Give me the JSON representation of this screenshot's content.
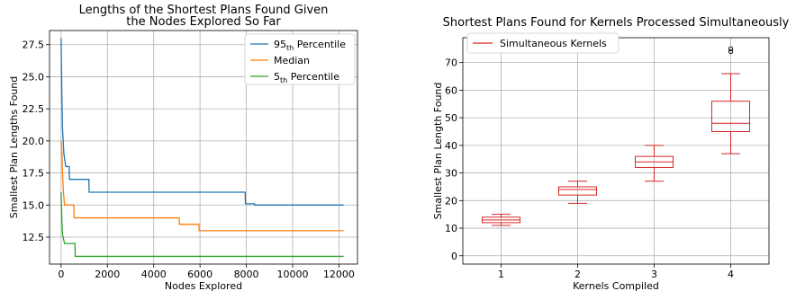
{
  "chart_data": [
    {
      "type": "line",
      "title_lines": [
        "Lengths of the Shortest Plans Found Given",
        "the Nodes Explored So Far"
      ],
      "xlabel": "Nodes Explored",
      "ylabel": "Smallest Plan Lengths Found",
      "xlim": [
        -500,
        12800
      ],
      "ylim": [
        10.4,
        28.6
      ],
      "xticks": [
        0,
        2000,
        4000,
        6000,
        8000,
        10000,
        12000
      ],
      "yticks": [
        12.5,
        15.0,
        17.5,
        20.0,
        22.5,
        25.0,
        27.5
      ],
      "grid": true,
      "legend_position": "top-right",
      "series": [
        {
          "name": "95th Percentile",
          "legend_base": "95",
          "legend_sub": "th",
          "legend_rest": " Percentile",
          "color": "#1f77b4",
          "points": [
            [
              0,
              28
            ],
            [
              30,
              24
            ],
            [
              60,
              21
            ],
            [
              120,
              19
            ],
            [
              200,
              18
            ],
            [
              350,
              18
            ],
            [
              360,
              17
            ],
            [
              1200,
              17
            ],
            [
              1210,
              16
            ],
            [
              7950,
              16
            ],
            [
              7960,
              15.1
            ],
            [
              8350,
              15.1
            ],
            [
              8360,
              15
            ],
            [
              12200,
              15
            ]
          ]
        },
        {
          "name": "Median",
          "legend_base": "Median",
          "legend_sub": "",
          "legend_rest": "",
          "color": "#ff7f0e",
          "points": [
            [
              0,
              20
            ],
            [
              40,
              19
            ],
            [
              60,
              17.5
            ],
            [
              100,
              16
            ],
            [
              150,
              15
            ],
            [
              550,
              15
            ],
            [
              560,
              14
            ],
            [
              5100,
              14
            ],
            [
              5110,
              13.5
            ],
            [
              5950,
              13.5
            ],
            [
              5960,
              13
            ],
            [
              12200,
              13
            ]
          ]
        },
        {
          "name": "5th Percentile",
          "legend_base": "5",
          "legend_sub": "th",
          "legend_rest": " Percentile",
          "color": "#2ca02c",
          "points": [
            [
              0,
              16
            ],
            [
              30,
              14
            ],
            [
              60,
              12.7
            ],
            [
              150,
              12
            ],
            [
              600,
              12
            ],
            [
              610,
              11
            ],
            [
              12200,
              11
            ]
          ]
        }
      ]
    },
    {
      "type": "box",
      "title": "Shortest Plans Found for Kernels Processed Simultaneously",
      "xlabel": "Kernels Compiled",
      "ylabel": "Smallest Plan Length Found",
      "xlim": [
        0.5,
        4.5
      ],
      "ylim": [
        -3,
        79
      ],
      "xticks": [
        1,
        2,
        3,
        4
      ],
      "yticks": [
        0,
        10,
        20,
        30,
        40,
        50,
        60,
        70
      ],
      "grid": true,
      "legend_position": "top-left",
      "color": "#d62728",
      "legend": [
        "Simultaneous Kernels"
      ],
      "boxes": [
        {
          "category": 1,
          "whisker_low": 11,
          "q1": 12,
          "median": 13,
          "q3": 14,
          "whisker_high": 15,
          "outliers": []
        },
        {
          "category": 2,
          "whisker_low": 19,
          "q1": 22,
          "median": 24,
          "q3": 25,
          "whisker_high": 27,
          "outliers": []
        },
        {
          "category": 3,
          "whisker_low": 27,
          "q1": 32,
          "median": 34,
          "q3": 36,
          "whisker_high": 40,
          "outliers": []
        },
        {
          "category": 4,
          "whisker_low": 37,
          "q1": 45,
          "median": 48,
          "q3": 56,
          "whisker_high": 66,
          "outliers": [
            74,
            75
          ]
        }
      ]
    }
  ]
}
